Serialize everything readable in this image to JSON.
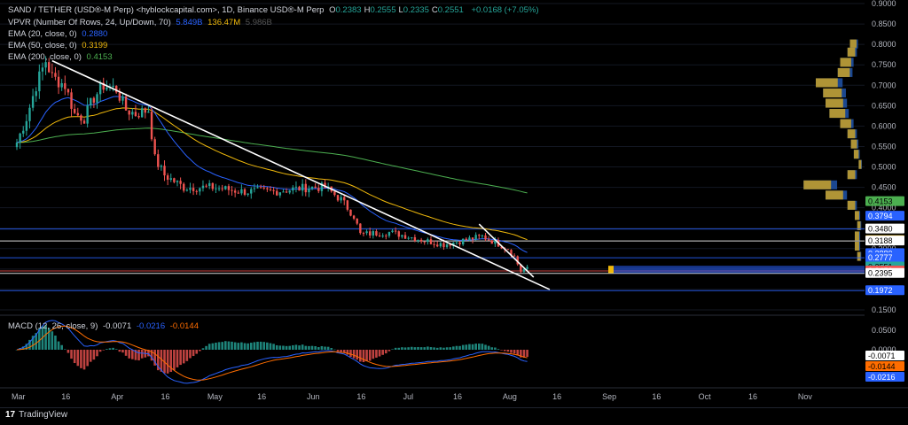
{
  "header": {
    "title": "SAND / TETHER (USD®-M Perp) <hyblockcapital.com>, 1D, Binance USD®-M Perp",
    "ohlc": [
      {
        "k": "O",
        "v": "0.2383"
      },
      {
        "k": "H",
        "v": "0.2555"
      },
      {
        "k": "L",
        "v": "0.2335"
      },
      {
        "k": "C",
        "v": "0.2551"
      }
    ],
    "change": "+0.0168 (+7.05%)"
  },
  "indicators": {
    "vpvr": {
      "label": "VPVR (Number Of Rows, 24, Up/Down, 70)",
      "v1": "5.849B",
      "v2": "136.47M",
      "v3": "5.986B"
    },
    "ema20": {
      "label": "EMA (20, close, 0)",
      "value": "0.2880",
      "color": "#2962ff"
    },
    "ema50": {
      "label": "EMA (50, close, 0)",
      "value": "0.3199",
      "color": "#f0b90b"
    },
    "ema200": {
      "label": "EMA (200, close, 0)",
      "value": "0.4153",
      "color": "#4caf50"
    }
  },
  "macd": {
    "label": "MACD (12, 26, close, 9)",
    "macd": "-0.0071",
    "signal": "-0.0216",
    "hist": "-0.0144"
  },
  "colors": {
    "up": "#26a69a",
    "down": "#ef5350",
    "ema20": "#2962ff",
    "ema50": "#f0b90b",
    "ema200": "#4caf50",
    "hline": "#2962ff",
    "trendline": "#ffffff"
  },
  "price_axis": [
    "0.9000",
    "0.8500",
    "0.8000",
    "0.7500",
    "0.7000",
    "0.6500",
    "0.6000",
    "0.5500",
    "0.5000",
    "0.4500",
    "0.4000",
    "0.3500",
    "0.3000",
    "0.2500",
    "0.2000",
    "0.1500"
  ],
  "price_tags": [
    {
      "v": "0.4153",
      "bg": "#4caf50",
      "fg": "#000"
    },
    {
      "v": "0.3794",
      "bg": "#2962ff",
      "fg": "#fff"
    },
    {
      "v": "0.3480",
      "bg": "#ffffff",
      "fg": "#000"
    },
    {
      "v": "0.3199",
      "bg": "#f0b90b",
      "fg": "#000"
    },
    {
      "v": "0.3188",
      "bg": "#ffffff",
      "fg": "#000"
    },
    {
      "v": "0.2880",
      "bg": "#2962ff",
      "fg": "#fff"
    },
    {
      "v": "0.2777",
      "bg": "#2962ff",
      "fg": "#fff"
    },
    {
      "v": "0.2551",
      "bg": "#26a69a",
      "fg": "#000"
    },
    {
      "v": "0.2453",
      "bg": "#ef5350",
      "fg": "#fff"
    },
    {
      "v": "0.2395",
      "bg": "#ffffff",
      "fg": "#000"
    },
    {
      "v": "0.1972",
      "bg": "#2962ff",
      "fg": "#fff"
    }
  ],
  "macd_axis": [
    "0.0500",
    "0.0000"
  ],
  "macd_tags": [
    {
      "v": "-0.0071",
      "bg": "#ffffff",
      "fg": "#000"
    },
    {
      "v": "-0.0144",
      "bg": "#ff6d00",
      "fg": "#000"
    },
    {
      "v": "-0.0216",
      "bg": "#2962ff",
      "fg": "#fff"
    }
  ],
  "time_axis": [
    "Mar",
    "16",
    "Apr",
    "16",
    "May",
    "16",
    "Jun",
    "16",
    "Jul",
    "16",
    "Aug",
    "16",
    "Sep",
    "16",
    "Oct",
    "16",
    "Nov"
  ],
  "brand": "TradingView",
  "chart_data": {
    "type": "candlestick",
    "title": "SAND / TETHER (USD®-M Perp), 1D",
    "ylim": [
      0.15,
      0.9
    ],
    "horizontal_levels": [
      0.348,
      0.3188,
      0.2777,
      0.2453,
      0.2395,
      0.1972
    ],
    "current_price": 0.2551,
    "close_path": [
      [
        "Mar 1",
        0.56
      ],
      [
        "Mar 4",
        0.62
      ],
      [
        "Mar 7",
        0.7
      ],
      [
        "Mar 10",
        0.76
      ],
      [
        "Mar 12",
        0.72
      ],
      [
        "Mar 16",
        0.7
      ],
      [
        "Mar 19",
        0.63
      ],
      [
        "Mar 22",
        0.62
      ],
      [
        "Mar 25",
        0.67
      ],
      [
        "Mar 28",
        0.7
      ],
      [
        "Apr 1",
        0.69
      ],
      [
        "Apr 4",
        0.64
      ],
      [
        "Apr 7",
        0.63
      ],
      [
        "Apr 11",
        0.64
      ],
      [
        "Apr 13",
        0.52
      ],
      [
        "Apr 16",
        0.48
      ],
      [
        "Apr 22",
        0.45
      ],
      [
        "May 1",
        0.45
      ],
      [
        "May 10",
        0.44
      ],
      [
        "May 20",
        0.44
      ],
      [
        "May 31",
        0.45
      ],
      [
        "Jun 5",
        0.45
      ],
      [
        "Jun 10",
        0.42
      ],
      [
        "Jun 14",
        0.38
      ],
      [
        "Jun 16",
        0.335
      ],
      [
        "Jun 25",
        0.34
      ],
      [
        "Jul 1",
        0.33
      ],
      [
        "Jul 6",
        0.32
      ],
      [
        "Jul 12",
        0.31
      ],
      [
        "Jul 18",
        0.32
      ],
      [
        "Jul 24",
        0.33
      ],
      [
        "Aug 1",
        0.3
      ],
      [
        "Aug 3",
        0.28
      ],
      [
        "Aug 5",
        0.245
      ],
      [
        "Aug 7",
        0.255
      ]
    ],
    "macd_series": [
      {
        "name": "MACD",
        "final": -0.0071
      },
      {
        "name": "Signal",
        "final": -0.0216
      },
      {
        "name": "Histogram",
        "final": -0.0144
      }
    ]
  }
}
